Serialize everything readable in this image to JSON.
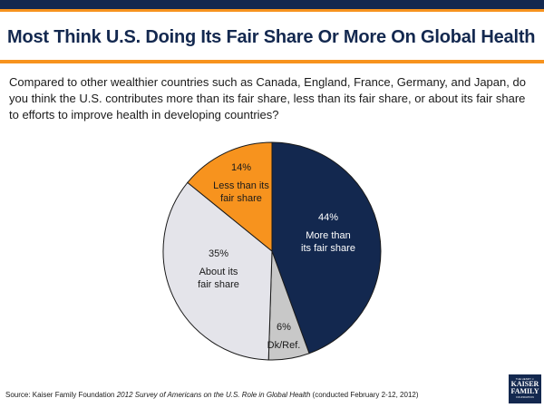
{
  "title": "Most Think U.S. Doing Its Fair Share Or More On Global Health",
  "question": "Compared to other wealthier countries such as Canada, England, France, Germany, and Japan, do you think the U.S. contributes more than its fair share, less than its fair share, or about its fair share to efforts to improve health in developing countries?",
  "source": {
    "prefix": "Source: Kaiser Family Foundation ",
    "survey": "2012 Survey of Americans on the U.S. Role in Global Health",
    "suffix": " (conducted February 2-12, 2012)"
  },
  "logo": {
    "line1": "THE HENRY J.",
    "line2a": "KAISER",
    "line2b": "FAMILY",
    "line3": "FOUNDATION"
  },
  "colors": {
    "navy": "#13284f",
    "orange": "#f7931e",
    "gray": "#c8c8c8",
    "lightgray": "#e4e4ea"
  },
  "chart_data": {
    "type": "pie",
    "title": "",
    "slices": [
      {
        "key": "more",
        "pct_label": "44%",
        "value": 44,
        "label_lines": [
          "More than",
          "its fair share"
        ],
        "color": "#13284f",
        "text_color": "#ffffff"
      },
      {
        "key": "dk",
        "pct_label": "6%",
        "value": 6,
        "label_lines": [
          "Dk/Ref."
        ],
        "color": "#c8c8c8",
        "text_color": "#1a1a1a"
      },
      {
        "key": "about",
        "pct_label": "35%",
        "value": 35,
        "label_lines": [
          "About its",
          "fair share"
        ],
        "color": "#e4e4ea",
        "text_color": "#1a1a1a"
      },
      {
        "key": "less",
        "pct_label": "14%",
        "value": 14,
        "label_lines": [
          "Less than its",
          "fair share"
        ],
        "color": "#f7931e",
        "text_color": "#1a1a1a"
      }
    ]
  }
}
